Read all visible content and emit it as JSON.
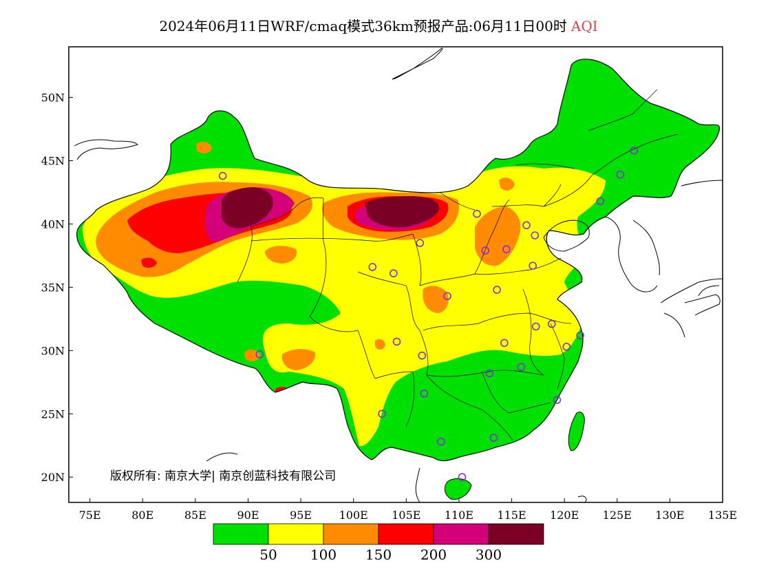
{
  "title": {
    "main": "2024年06月11日WRF/cmaq模式36km预报产品:06月11日00时",
    "variable": "AQI",
    "variable_color": "#e04040"
  },
  "map": {
    "lon_range": [
      73,
      135
    ],
    "lat_range": [
      18,
      54
    ],
    "lon_ticks": [
      "75E",
      "80E",
      "85E",
      "90E",
      "95E",
      "100E",
      "105E",
      "110E",
      "115E",
      "120E",
      "125E",
      "130E",
      "135E"
    ],
    "lat_ticks": [
      "50N",
      "45N",
      "40N",
      "35N",
      "30N",
      "25N",
      "20N"
    ],
    "copyright": "版权所有: 南京大学| 南京创蓝科技有限公司"
  },
  "legend": {
    "colors": [
      "#00e000",
      "#ffff00",
      "#ff8c00",
      "#ff0000",
      "#d4007a",
      "#7a0026"
    ],
    "labels": [
      "50",
      "100",
      "150",
      "200",
      "300"
    ]
  },
  "stations": {
    "marker_color": "#8a2be2",
    "points": [
      [
        87.6,
        43.8
      ],
      [
        91.1,
        29.7
      ],
      [
        101.8,
        36.6
      ],
      [
        103.8,
        36.1
      ],
      [
        106.3,
        38.5
      ],
      [
        111.7,
        40.8
      ],
      [
        116.4,
        39.9
      ],
      [
        117.2,
        39.1
      ],
      [
        114.5,
        38.0
      ],
      [
        112.5,
        37.9
      ],
      [
        108.9,
        34.3
      ],
      [
        113.6,
        34.8
      ],
      [
        117.0,
        36.7
      ],
      [
        117.3,
        31.9
      ],
      [
        118.8,
        32.1
      ],
      [
        120.2,
        30.3
      ],
      [
        121.5,
        31.2
      ],
      [
        114.3,
        30.6
      ],
      [
        112.9,
        28.2
      ],
      [
        115.9,
        28.7
      ],
      [
        119.3,
        26.1
      ],
      [
        106.7,
        26.6
      ],
      [
        102.7,
        25.0
      ],
      [
        104.1,
        30.7
      ],
      [
        106.5,
        29.6
      ],
      [
        108.3,
        22.8
      ],
      [
        113.3,
        23.1
      ],
      [
        110.3,
        20.0
      ],
      [
        123.4,
        41.8
      ],
      [
        125.3,
        43.9
      ],
      [
        126.6,
        45.8
      ]
    ]
  }
}
